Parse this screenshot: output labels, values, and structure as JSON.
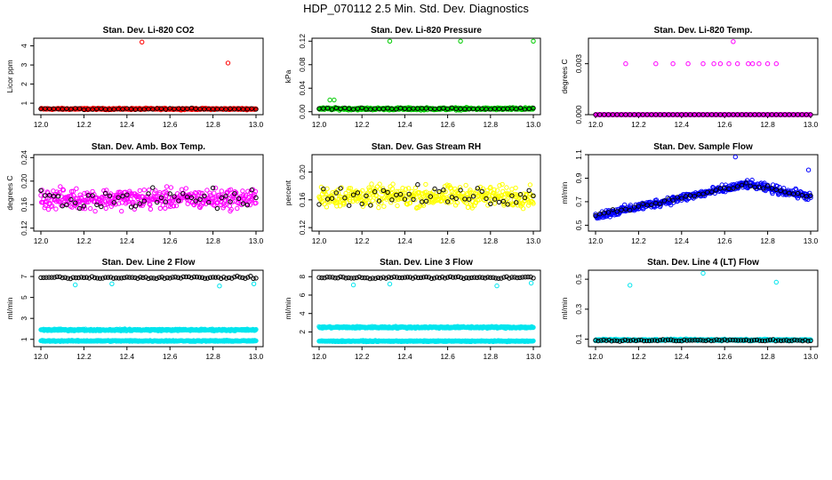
{
  "page": {
    "title": "HDP_070112  2.5 Min. Std. Dev. Diagnostics"
  },
  "chart_data": [
    {
      "type": "scatter",
      "title": "Stan. Dev. Li-820 CO2",
      "ylabel": "Licor ppm",
      "xlim": [
        12.0,
        13.0
      ],
      "ylim": [
        0.4,
        4.4
      ],
      "xticks": [
        "12.0",
        "12.2",
        "12.4",
        "12.6",
        "12.8",
        "13.0"
      ],
      "yticks": [
        "1",
        "2",
        "3",
        "4"
      ],
      "series": [
        {
          "name": "all",
          "color": "#ff0000",
          "base": 0.7,
          "spread": 0.06,
          "step": 0.0025
        },
        {
          "name": "selected",
          "color": "#000000",
          "base": 0.7,
          "spread": 0.05,
          "step": 0.02
        }
      ],
      "outliers": [
        {
          "x": 12.47,
          "y": 4.2
        },
        {
          "x": 12.87,
          "y": 3.1
        }
      ]
    },
    {
      "type": "scatter",
      "title": "Stan. Dev. Li-820 Pressure",
      "ylabel": "kPa",
      "xlim": [
        12.0,
        13.0
      ],
      "ylim": [
        -0.005,
        0.125
      ],
      "xticks": [
        "12.0",
        "12.2",
        "12.4",
        "12.6",
        "12.8",
        "13.0"
      ],
      "yticks": [
        "0.00",
        "0.04",
        "0.08",
        "0.12"
      ],
      "series": [
        {
          "name": "all",
          "color": "#00cc00",
          "base": 0.005,
          "spread": 0.003,
          "step": 0.0025
        },
        {
          "name": "selected",
          "color": "#000000",
          "base": 0.005,
          "spread": 0.002,
          "step": 0.02
        }
      ],
      "outliers": [
        {
          "x": 12.33,
          "y": 0.12
        },
        {
          "x": 12.66,
          "y": 0.12
        },
        {
          "x": 13.0,
          "y": 0.12
        },
        {
          "x": 12.05,
          "y": 0.02
        },
        {
          "x": 12.07,
          "y": 0.02
        }
      ]
    },
    {
      "type": "scatter",
      "title": "Stan. Dev. Li-820 Temp.",
      "ylabel": "degrees C",
      "xlim": [
        12.0,
        13.0
      ],
      "ylim": [
        0.0,
        0.0045
      ],
      "xticks": [
        "12.0",
        "12.2",
        "12.4",
        "12.6",
        "12.8",
        "13.0"
      ],
      "yticks": [
        "0.000",
        "0.003"
      ],
      "series": [
        {
          "name": "all",
          "color": "#ff00ff",
          "base": 0.0,
          "spread": 0.0,
          "step": 0.0025
        },
        {
          "name": "selected",
          "color": "#000000",
          "base": 0.0,
          "spread": 0.0,
          "step": 0.02
        }
      ],
      "outliers": [
        {
          "x": 12.14,
          "y": 0.003
        },
        {
          "x": 12.28,
          "y": 0.003
        },
        {
          "x": 12.36,
          "y": 0.003
        },
        {
          "x": 12.43,
          "y": 0.003
        },
        {
          "x": 12.5,
          "y": 0.003
        },
        {
          "x": 12.55,
          "y": 0.003
        },
        {
          "x": 12.58,
          "y": 0.003
        },
        {
          "x": 12.62,
          "y": 0.003
        },
        {
          "x": 12.64,
          "y": 0.0043
        },
        {
          "x": 12.66,
          "y": 0.003
        },
        {
          "x": 12.71,
          "y": 0.003
        },
        {
          "x": 12.73,
          "y": 0.003
        },
        {
          "x": 12.76,
          "y": 0.003
        },
        {
          "x": 12.8,
          "y": 0.003
        },
        {
          "x": 12.84,
          "y": 0.003
        }
      ]
    },
    {
      "type": "scatter",
      "title": "Stan. Dev. Amb. Box Temp.",
      "ylabel": "degrees C",
      "xlim": [
        12.0,
        13.0
      ],
      "ylim": [
        0.115,
        0.245
      ],
      "xticks": [
        "12.0",
        "12.2",
        "12.4",
        "12.6",
        "12.8",
        "13.0"
      ],
      "yticks": [
        "0.12",
        "0.16",
        "0.20",
        "0.24"
      ],
      "series": [
        {
          "name": "all",
          "color": "#ff00ff",
          "base": 0.17,
          "spread": 0.025,
          "step": 0.0025
        },
        {
          "name": "selected",
          "color": "#000000",
          "base": 0.17,
          "spread": 0.025,
          "step": 0.02
        }
      ],
      "outliers": []
    },
    {
      "type": "scatter",
      "title": "Stan. Dev. Gas Stream RH",
      "ylabel": "percent",
      "xlim": [
        12.0,
        13.0
      ],
      "ylim": [
        0.115,
        0.225
      ],
      "xticks": [
        "12.0",
        "12.2",
        "12.4",
        "12.6",
        "12.8",
        "13.0"
      ],
      "yticks": [
        "0.12",
        "0.16",
        "0.20"
      ],
      "series": [
        {
          "name": "all",
          "color": "#ffff00",
          "base": 0.165,
          "spread": 0.022,
          "step": 0.0025
        },
        {
          "name": "selected",
          "color": "#000000",
          "base": 0.165,
          "spread": 0.02,
          "step": 0.02
        }
      ],
      "outliers": []
    },
    {
      "type": "scatter",
      "title": "Stan. Dev. Sample Flow",
      "ylabel": "ml/min",
      "xlim": [
        12.0,
        13.0
      ],
      "ylim": [
        0.45,
        1.1
      ],
      "xticks": [
        "12.0",
        "12.2",
        "12.4",
        "12.6",
        "12.8",
        "13.0"
      ],
      "yticks": [
        "0.5",
        "0.7",
        "0.9",
        "1.1"
      ],
      "series": [
        {
          "name": "all",
          "color": "#0000ff",
          "base": 0.0,
          "spread": 0.05,
          "step": 0.0025,
          "trend": "sample"
        },
        {
          "name": "selected",
          "color": "#000000",
          "base": 0.0,
          "spread": 0.03,
          "step": 0.02,
          "trend": "sample"
        }
      ],
      "outliers": [
        {
          "x": 12.65,
          "y": 1.08
        },
        {
          "x": 12.99,
          "y": 0.97
        }
      ]
    },
    {
      "type": "scatter",
      "title": "Stan. Dev. Line 2 Flow",
      "ylabel": "ml/min",
      "xlim": [
        12.0,
        13.0
      ],
      "ylim": [
        0.3,
        7.6
      ],
      "xticks": [
        "12.0",
        "12.2",
        "12.4",
        "12.6",
        "12.8",
        "13.0"
      ],
      "yticks": [
        "1",
        "3",
        "5",
        "7"
      ],
      "series": [
        {
          "name": "line-a",
          "color": "#00e5ee",
          "base": 1.9,
          "spread": 0.12,
          "step": 0.0025
        },
        {
          "name": "line-b",
          "color": "#00e5ee",
          "base": 0.85,
          "spread": 0.08,
          "step": 0.0025
        },
        {
          "name": "selected",
          "color": "#000000",
          "base": 6.9,
          "spread": 0.15,
          "step": 0.0125
        }
      ],
      "outliers": [
        {
          "x": 12.16,
          "y": 6.2
        },
        {
          "x": 12.33,
          "y": 6.3
        },
        {
          "x": 12.83,
          "y": 6.1
        },
        {
          "x": 12.99,
          "y": 6.3
        }
      ]
    },
    {
      "type": "scatter",
      "title": "Stan. Dev. Line 3 Flow",
      "ylabel": "ml/min",
      "xlim": [
        12.0,
        13.0
      ],
      "ylim": [
        0.4,
        8.7
      ],
      "xticks": [
        "12.0",
        "12.2",
        "12.4",
        "12.6",
        "12.8",
        "13.0"
      ],
      "yticks": [
        "2",
        "4",
        "6",
        "8"
      ],
      "series": [
        {
          "name": "line-a",
          "color": "#00e5ee",
          "base": 2.5,
          "spread": 0.15,
          "step": 0.0025
        },
        {
          "name": "line-b",
          "color": "#00e5ee",
          "base": 1.0,
          "spread": 0.08,
          "step": 0.0025
        },
        {
          "name": "selected",
          "color": "#000000",
          "base": 7.9,
          "spread": 0.15,
          "step": 0.0125
        }
      ],
      "outliers": [
        {
          "x": 12.16,
          "y": 7.1
        },
        {
          "x": 12.33,
          "y": 7.2
        },
        {
          "x": 12.83,
          "y": 7.0
        },
        {
          "x": 12.99,
          "y": 7.3
        }
      ]
    },
    {
      "type": "scatter",
      "title": "Stan. Dev. Line 4 (LT) Flow",
      "ylabel": "ml/min",
      "xlim": [
        12.0,
        13.0
      ],
      "ylim": [
        0.05,
        0.56
      ],
      "xticks": [
        "12.0",
        "12.2",
        "12.4",
        "12.6",
        "12.8",
        "13.0"
      ],
      "yticks": [
        "0.1",
        "0.3",
        "0.5"
      ],
      "series": [
        {
          "name": "all",
          "color": "#00e5ee",
          "base": 0.095,
          "spread": 0.008,
          "step": 0.0025
        },
        {
          "name": "selected",
          "color": "#000000",
          "base": 0.092,
          "spread": 0.008,
          "step": 0.0125
        }
      ],
      "outliers": [
        {
          "x": 12.16,
          "y": 0.46
        },
        {
          "x": 12.5,
          "y": 0.54
        },
        {
          "x": 12.84,
          "y": 0.48
        }
      ]
    }
  ]
}
